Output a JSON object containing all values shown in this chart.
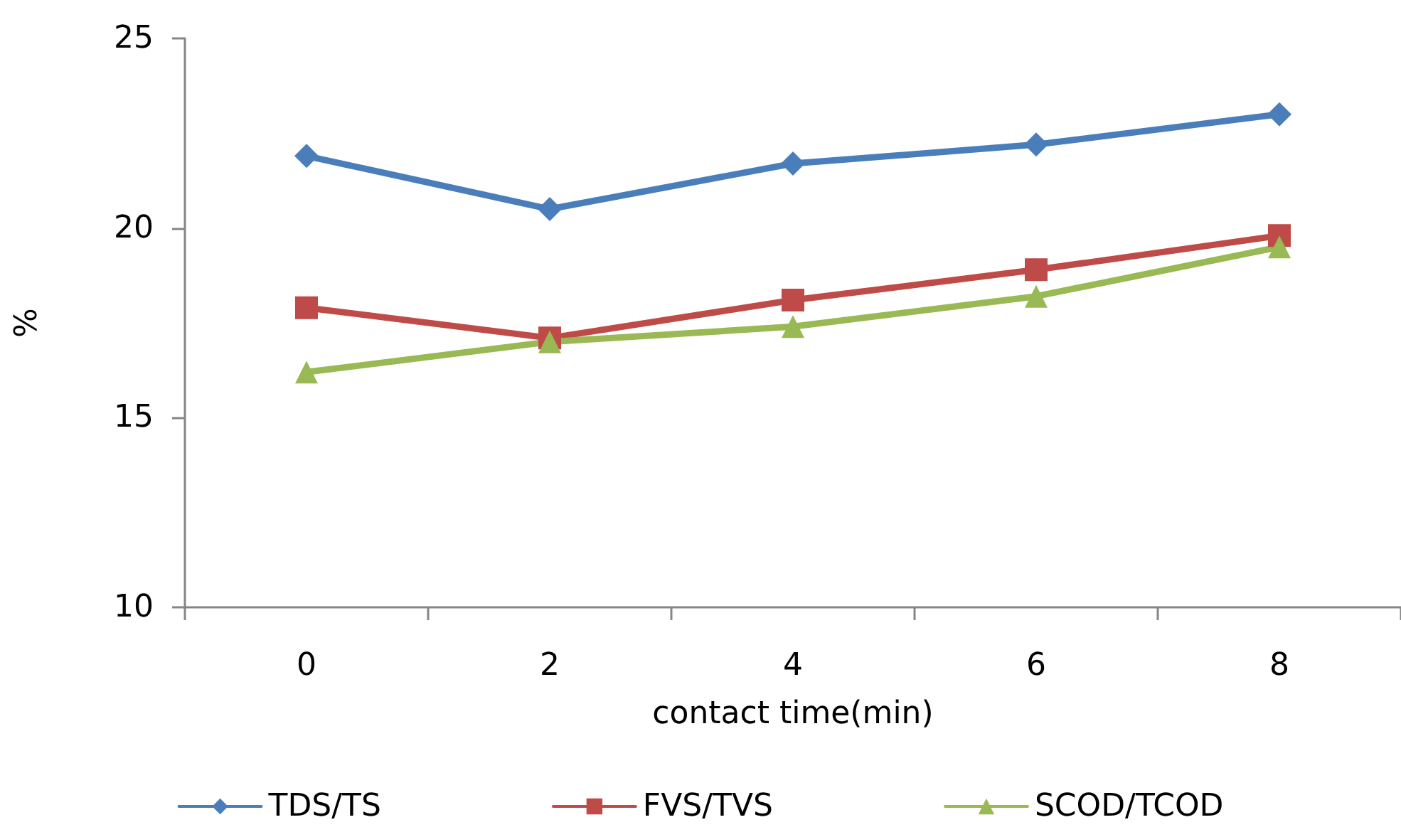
{
  "chart_data": {
    "type": "line",
    "xlabel": "contact time(min)",
    "ylabel": "%",
    "categories": [
      "0",
      "2",
      "4",
      "6",
      "8"
    ],
    "series": [
      {
        "name": "TDS/TS",
        "color": "#4a7ebb",
        "marker": "diamond",
        "values": [
          21.9,
          20.5,
          21.7,
          22.2,
          23.0
        ]
      },
      {
        "name": "FVS/TVS",
        "color": "#be4b48",
        "marker": "square",
        "values": [
          17.9,
          17.1,
          18.1,
          18.9,
          19.8
        ]
      },
      {
        "name": "SCOD/TCOD",
        "color": "#98b954",
        "marker": "triangle",
        "values": [
          16.2,
          17.0,
          17.4,
          18.2,
          19.5
        ]
      }
    ],
    "ylim": [
      10,
      25
    ],
    "yticks": [
      10,
      15,
      20,
      25
    ],
    "grid": false,
    "legend": "bottom",
    "line_style": "solid"
  }
}
